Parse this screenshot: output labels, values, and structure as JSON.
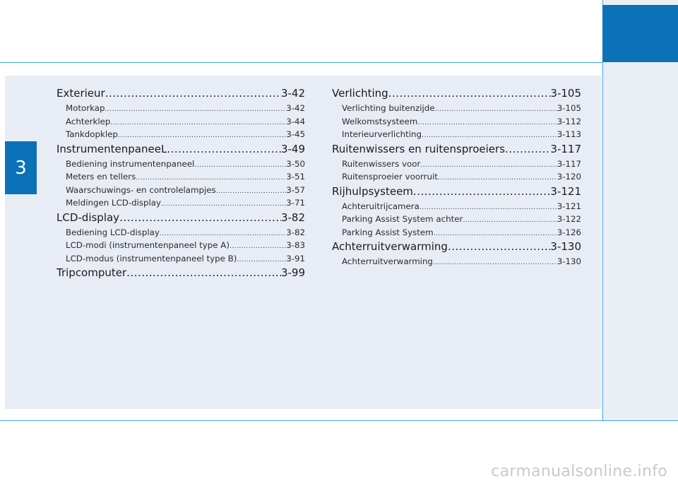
{
  "chapter_number": "3",
  "colors": {
    "accent": "#0b72b8",
    "rule": "#3aa8d8",
    "panel": "#e8edf5"
  },
  "toc_left": [
    {
      "label": "Exterieur",
      "page": "3-42",
      "level": "main"
    },
    {
      "label": "Motorkap",
      "page": "3-42",
      "level": "sub"
    },
    {
      "label": "Achterklep",
      "page": "3-44",
      "level": "sub"
    },
    {
      "label": "Tankdopklep",
      "page": "3-45",
      "level": "sub"
    },
    {
      "label": "InstrumentenpaneeL",
      "page": "3-49",
      "level": "main"
    },
    {
      "label": "Bediening instrumentenpaneel",
      "page": "3-50",
      "level": "sub"
    },
    {
      "label": "Meters en tellers",
      "page": "3-51",
      "level": "sub"
    },
    {
      "label": "Waarschuwings- en controlelampjes",
      "page": "3-57",
      "level": "sub"
    },
    {
      "label": "Meldingen LCD-display",
      "page": "3-71",
      "level": "sub"
    },
    {
      "label": "LCD-display",
      "page": "3-82",
      "level": "main"
    },
    {
      "label": "Bediening LCD-display",
      "page": "3-82",
      "level": "sub"
    },
    {
      "label": "LCD-modi (instrumentenpaneel type A)",
      "page": "3-83",
      "level": "sub"
    },
    {
      "label": "LCD-modus (instrumentenpaneel type B)",
      "page": "3-91",
      "level": "sub"
    },
    {
      "label": "Tripcomputer",
      "page": "3-99",
      "level": "main"
    }
  ],
  "toc_right": [
    {
      "label": "Verlichting",
      "page": "3-105",
      "level": "main"
    },
    {
      "label": "Verlichting buitenzijde",
      "page": "3-105",
      "level": "sub"
    },
    {
      "label": "Welkomstsysteem",
      "page": "3-112",
      "level": "sub"
    },
    {
      "label": "Interieurverlichting",
      "page": "3-113",
      "level": "sub"
    },
    {
      "label": "Ruitenwissers en ruitensproeiers",
      "page": "3-117",
      "level": "main"
    },
    {
      "label": "Ruitenwissers voor",
      "page": "3-117",
      "level": "sub"
    },
    {
      "label": "Ruitensproeier voorruit",
      "page": "3-120",
      "level": "sub"
    },
    {
      "label": "Rijhulpsysteem",
      "page": "3-121",
      "level": "main"
    },
    {
      "label": "Achteruitrijcamera",
      "page": "3-121",
      "level": "sub"
    },
    {
      "label": "Parking Assist System achter",
      "page": "3-122",
      "level": "sub"
    },
    {
      "label": "Parking Assist System",
      "page": "3-126",
      "level": "sub"
    },
    {
      "label": "Achterruitverwarming",
      "page": "3-130",
      "level": "main"
    },
    {
      "label": "Achterruitverwarming",
      "page": "3-130",
      "level": "sub"
    }
  ],
  "watermark": "carmanualsonline.info"
}
